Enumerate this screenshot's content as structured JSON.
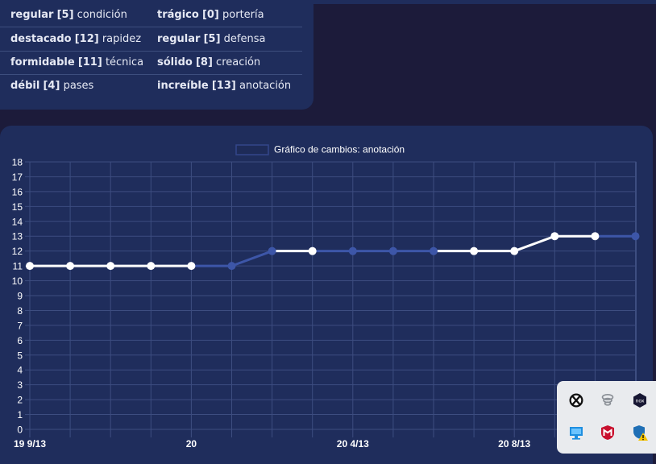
{
  "attributes": [
    {
      "left": {
        "level": "regular",
        "value": "[5]",
        "name": "condición"
      },
      "right": {
        "level": "trágico",
        "value": "[0]",
        "name": "portería"
      }
    },
    {
      "left": {
        "level": "destacado",
        "value": "[12]",
        "name": "rapidez"
      },
      "right": {
        "level": "regular",
        "value": "[5]",
        "name": "defensa"
      }
    },
    {
      "left": {
        "level": "formidable",
        "value": "[11]",
        "name": "técnica"
      },
      "right": {
        "level": "sólido",
        "value": "[8]",
        "name": "creación"
      }
    },
    {
      "left": {
        "level": "débil",
        "value": "[4]",
        "name": "pases"
      },
      "right": {
        "level": "increíble",
        "value": "[13]",
        "name": "anotación"
      }
    }
  ],
  "chart_data": {
    "type": "line",
    "legend": "Gráfico de cambios: anotación",
    "legend_position": "top-center",
    "grid": true,
    "ylim": [
      0,
      18
    ],
    "y_ticks": [
      "0",
      "1",
      "2",
      "3",
      "4",
      "5",
      "6",
      "7",
      "8",
      "9",
      "10",
      "11",
      "12",
      "13",
      "14",
      "15",
      "16",
      "17",
      "18"
    ],
    "x_labels": [
      "19 9/13",
      "",
      "",
      "",
      "20",
      "",
      "",
      "",
      "20 4/13",
      "",
      "",
      "",
      "20 8/13",
      "",
      "",
      ""
    ],
    "values": [
      11,
      11,
      11,
      11,
      11,
      11,
      12,
      12,
      12,
      12,
      12,
      12,
      12,
      13,
      13,
      13
    ],
    "segment_colors": [
      "#ffffff",
      "#ffffff",
      "#ffffff",
      "#ffffff",
      "#3d56a8",
      "#3d56a8",
      "#ffffff",
      "#3d56a8",
      "#3d56a8",
      "#3d56a8",
      "#ffffff",
      "#ffffff",
      "#ffffff",
      "#ffffff",
      "#3d56a8"
    ],
    "point_colors": [
      "#ffffff",
      "#ffffff",
      "#ffffff",
      "#ffffff",
      "#ffffff",
      "#3d56a8",
      "#3d56a8",
      "#ffffff",
      "#3d56a8",
      "#3d56a8",
      "#3d56a8",
      "#ffffff",
      "#ffffff",
      "#ffffff",
      "#ffffff",
      "#3d56a8"
    ],
    "line_color": "#3d56a8",
    "highlight_color": "#ffffff"
  },
  "tray": {
    "icons": [
      "xbox-icon",
      "wireless-icon",
      "nox-icon",
      "display-icon",
      "mcafee-icon",
      "defender-warning-icon"
    ]
  }
}
